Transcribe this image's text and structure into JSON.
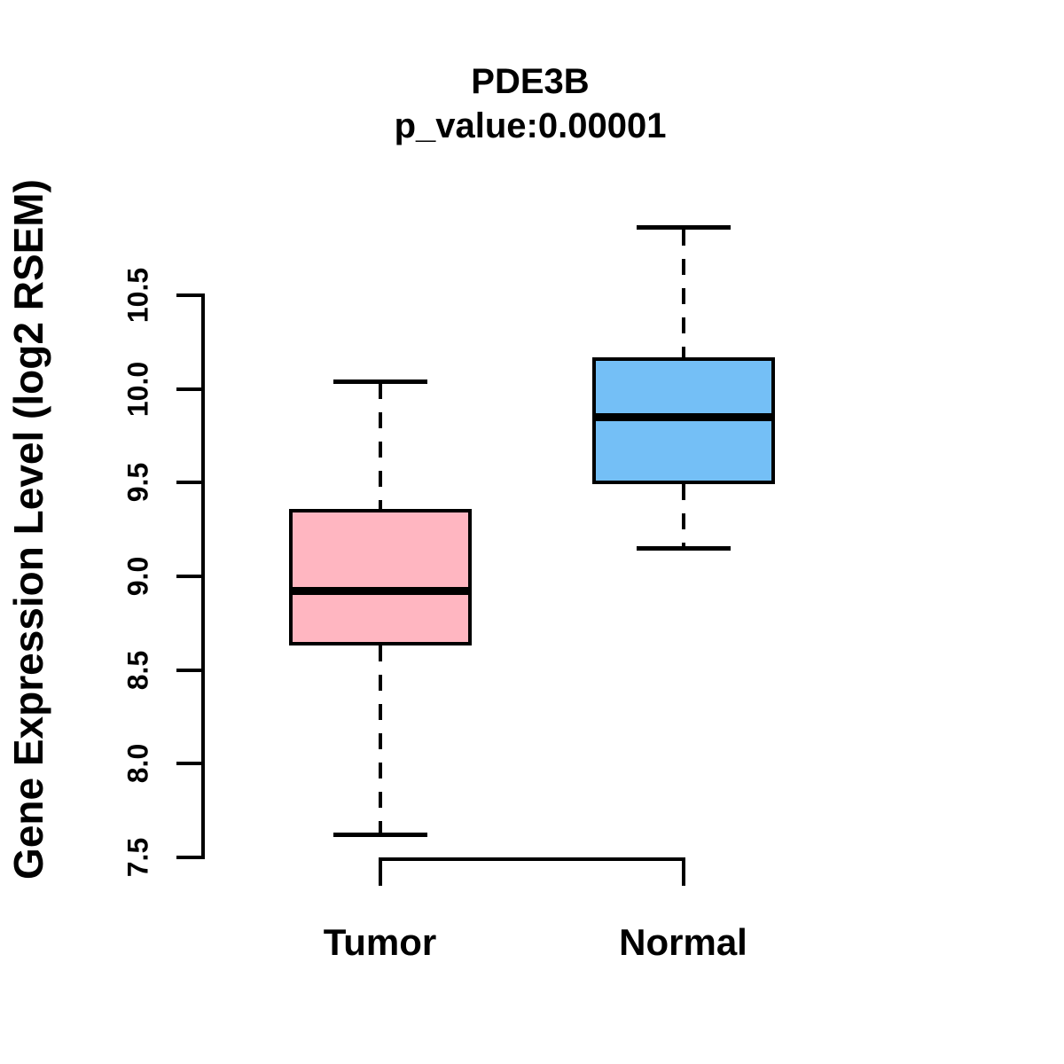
{
  "chart_data": {
    "type": "boxplot",
    "title": "PDE3B",
    "subtitle": "p_value:0.00001",
    "ylabel": "Gene Expression Level (log2 RSEM)",
    "xlabel": "",
    "ylim": [
      7.5,
      10.5
    ],
    "y_ticks": [
      7.5,
      8.0,
      8.5,
      9.0,
      9.5,
      10.0,
      10.5
    ],
    "y_tick_labels": [
      "7.5",
      "8.0",
      "8.5",
      "9.0",
      "9.5",
      "10.0",
      "10.5"
    ],
    "categories": [
      "Tumor",
      "Normal"
    ],
    "grid": false,
    "legend": "none",
    "series": [
      {
        "name": "Tumor",
        "whisker_low": 7.62,
        "q1": 8.64,
        "median": 8.92,
        "q3": 9.35,
        "whisker_high": 10.04,
        "outliers": [],
        "fill_color": "#FFB6C1",
        "line_color": "#000000"
      },
      {
        "name": "Normal",
        "whisker_low": 9.15,
        "q1": 9.5,
        "median": 9.85,
        "q3": 10.16,
        "whisker_high": 10.86,
        "outliers": [],
        "fill_color": "#74BFF6",
        "line_color": "#000000"
      }
    ]
  }
}
